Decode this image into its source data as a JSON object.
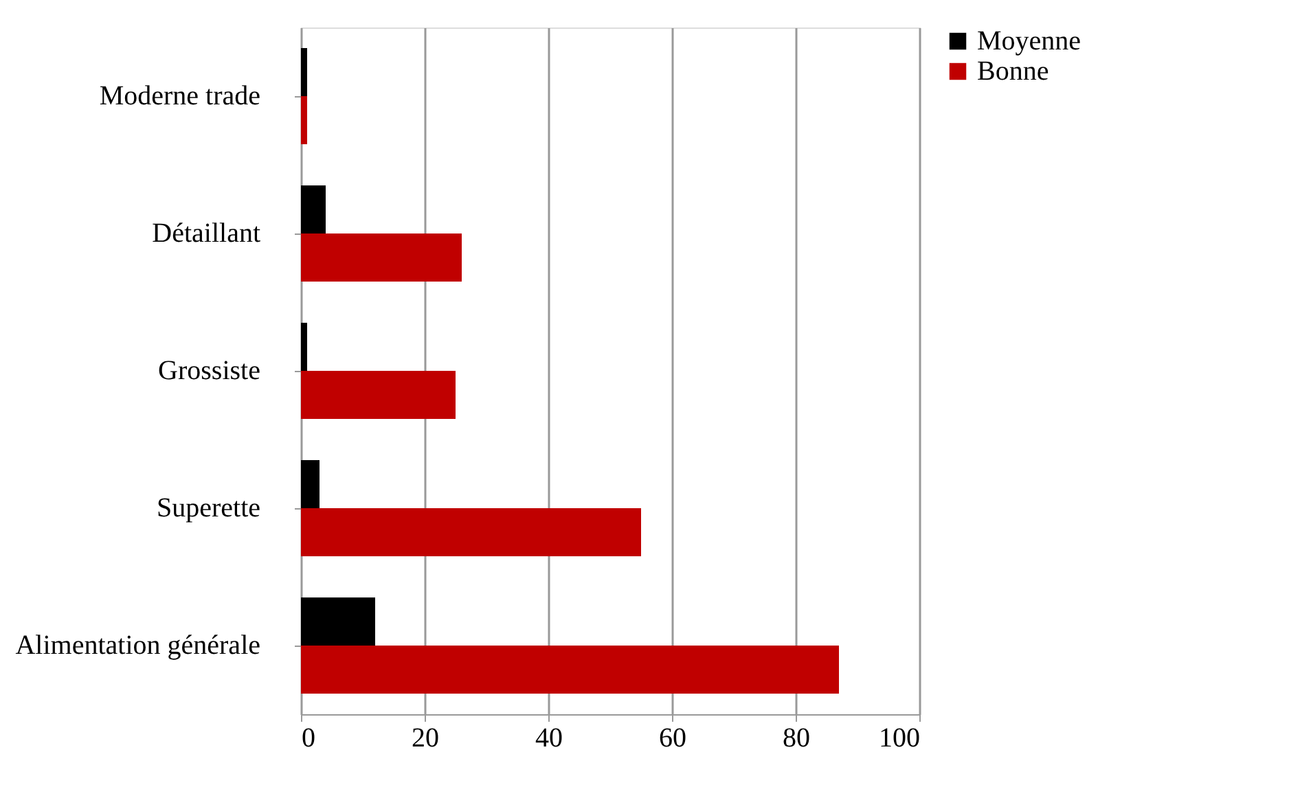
{
  "chart_data": {
    "type": "bar",
    "orientation": "horizontal",
    "categories": [
      "Moderne trade",
      "Détaillant",
      "Grossiste",
      "Superette",
      "Alimentation générale"
    ],
    "series": [
      {
        "name": "Moyenne",
        "color": "#000000",
        "values": [
          1,
          4,
          1,
          3,
          12
        ]
      },
      {
        "name": "Bonne",
        "color": "#c00000",
        "values": [
          1,
          26,
          25,
          55,
          87
        ]
      }
    ],
    "xlim": [
      0,
      100
    ],
    "xticks": [
      0,
      20,
      40,
      60,
      80,
      100
    ],
    "grid": "x",
    "legend": "right"
  }
}
